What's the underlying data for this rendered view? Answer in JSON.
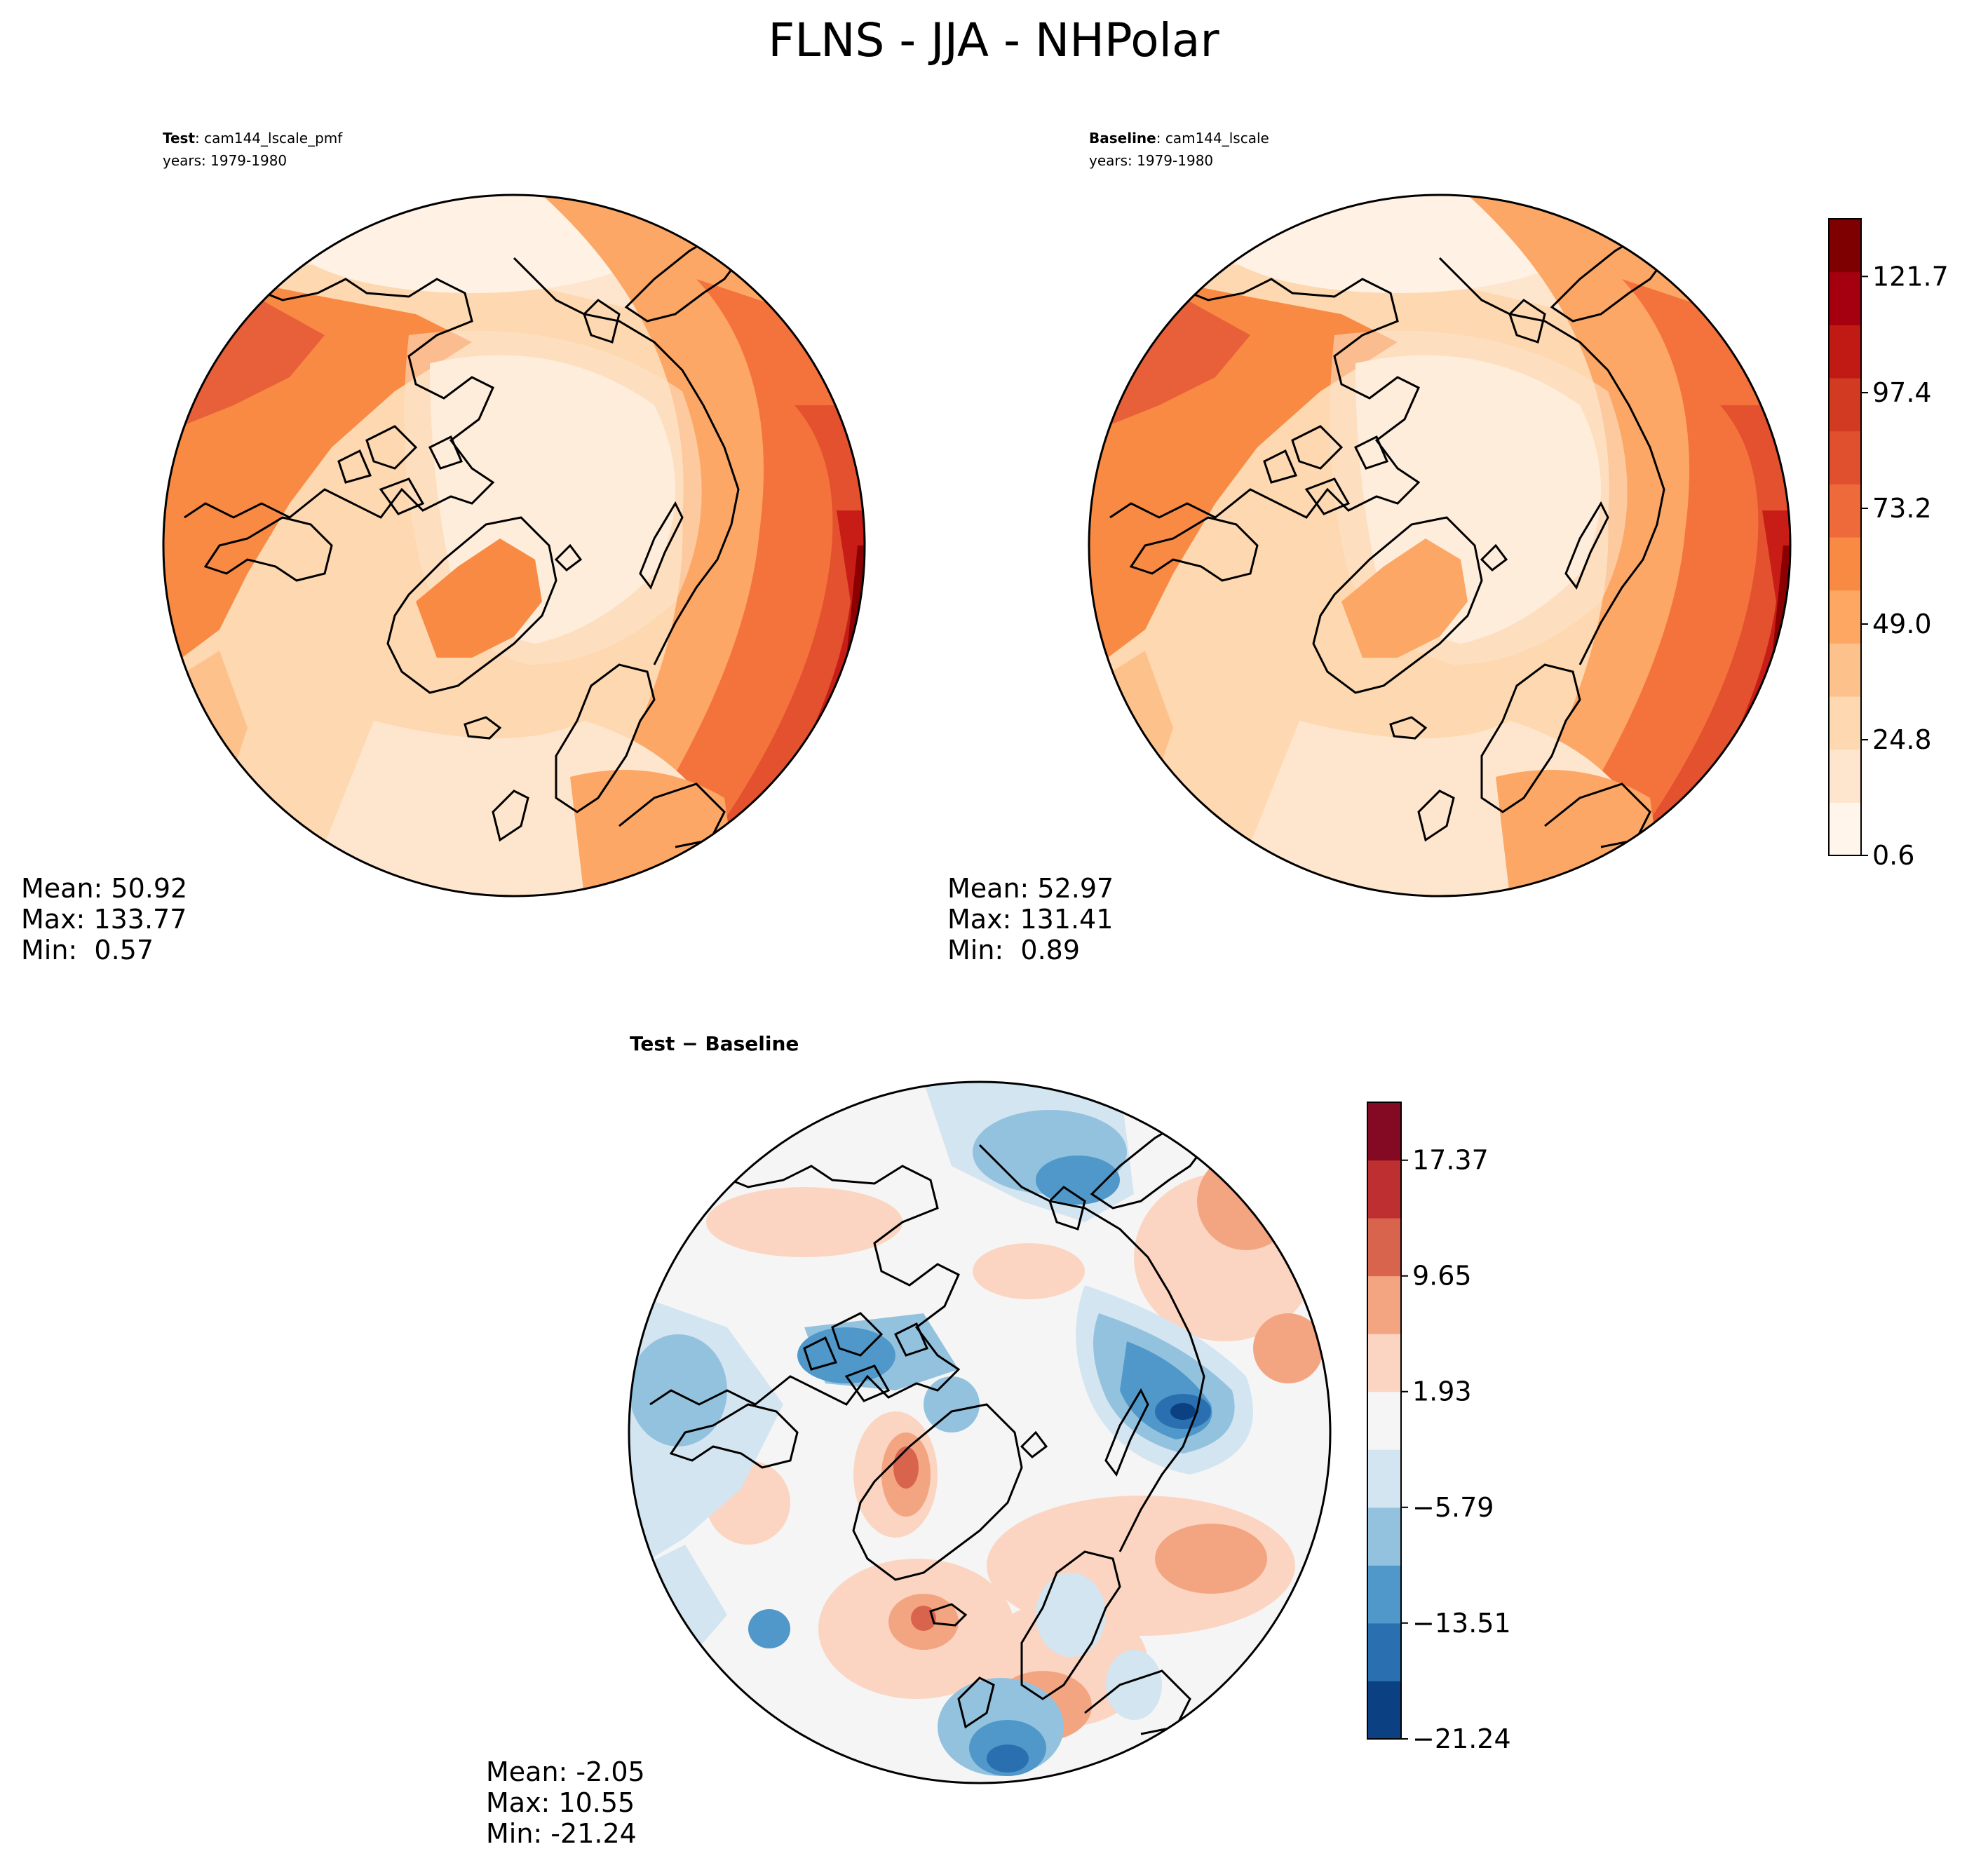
{
  "figure": {
    "title": "FLNS - JJA - NHPolar"
  },
  "chart_data": [
    {
      "type": "heatmap",
      "projection": "north-polar-stereographic",
      "label_bold": "Test",
      "label_rest": ": cam144_lscale_pmf",
      "years": "years: 1979-1980",
      "stats": {
        "mean": "Mean: 50.92",
        "max": "Max: 133.77",
        "min": "Min:  0.57"
      },
      "field": "absolute",
      "palette": [
        "#fff5eb",
        "#fee6ce",
        "#fdd0a2",
        "#fdae6b",
        "#fd8d3c",
        "#f16913",
        "#e4512b",
        "#d4331c",
        "#b8070a",
        "#8b0000"
      ]
    },
    {
      "type": "heatmap",
      "projection": "north-polar-stereographic",
      "label_bold": "Baseline",
      "label_rest": ": cam144_lscale",
      "years": "years: 1979-1980",
      "stats": {
        "mean": "Mean: 52.97",
        "max": "Max: 131.41",
        "min": "Min:  0.89"
      },
      "field": "absolute",
      "colorbar": {
        "tick_values": [
          0.6,
          24.8,
          49.0,
          73.2,
          97.4,
          121.7
        ],
        "tick_labels": [
          "0.6",
          "24.8",
          "49.0",
          "73.2",
          "97.4",
          "121.7"
        ],
        "range": [
          0.6,
          133.77
        ],
        "colors": [
          "#fff5eb",
          "#fee6ce",
          "#fdd8b0",
          "#fdc28c",
          "#fda762",
          "#f98a44",
          "#ee6a3b",
          "#e0502f",
          "#d33a22",
          "#c11a15",
          "#a50010",
          "#7e0000"
        ]
      }
    },
    {
      "type": "heatmap",
      "projection": "north-polar-stereographic",
      "label": "Test − Baseline",
      "stats": {
        "mean": "Mean: -2.05",
        "max": "Max: 10.55",
        "min": "Min: -21.24"
      },
      "field": "difference",
      "colorbar": {
        "tick_values": [
          -21.24,
          -13.51,
          -5.79,
          1.93,
          9.65,
          17.37
        ],
        "tick_labels": [
          "−21.24",
          "−13.51",
          "−5.79",
          "1.93",
          "9.65",
          "17.37"
        ],
        "range": [
          -21.24,
          21.24
        ],
        "colors": [
          "#0b4083",
          "#2a6fb0",
          "#4f98c9",
          "#93c2df",
          "#d3e5f1",
          "#f5f5f5",
          "#fbd5c2",
          "#f3a582",
          "#d9644e",
          "#be2f31",
          "#840a24"
        ]
      }
    }
  ]
}
